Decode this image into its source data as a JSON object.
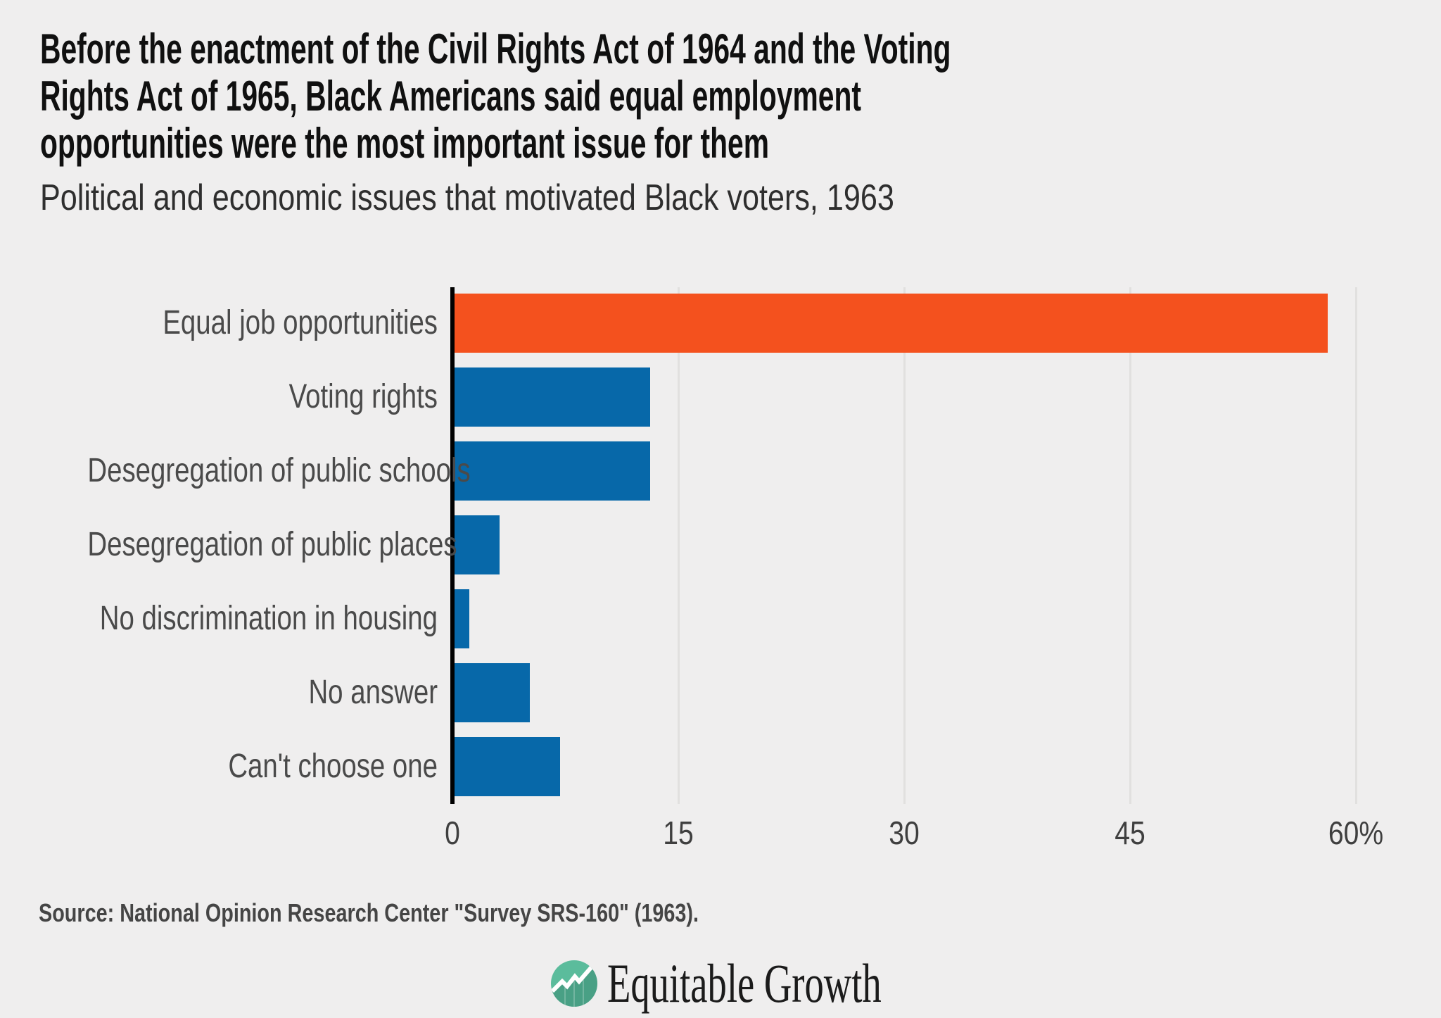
{
  "page": {
    "background": "#efeeee"
  },
  "header": {
    "title": "Before the enactment of the Civil Rights Act of 1964 and the Voting\nRights Act of 1965, Black Americans said equal employment\nopportunities were the most important issue for them",
    "subtitle": "Political and economic issues that motivated Black voters, 1963"
  },
  "chart_data": {
    "type": "bar",
    "orientation": "horizontal",
    "title": "Political and economic issues that motivated Black voters, 1963",
    "categories": [
      "Equal job opportunities",
      "Voting rights",
      "Desegregation of public schools",
      "Desegregation of public places",
      "No discrimination in housing",
      "No answer",
      "Can't choose one"
    ],
    "values": [
      58,
      13,
      13,
      3,
      1,
      5,
      7
    ],
    "unit": "%",
    "xlim": [
      0,
      65
    ],
    "x_ticks": [
      {
        "value": 0,
        "label": "0"
      },
      {
        "value": 15,
        "label": "15"
      },
      {
        "value": 30,
        "label": "30"
      },
      {
        "value": 45,
        "label": "45"
      },
      {
        "value": 60,
        "label": "60%"
      }
    ],
    "grid": "vertical",
    "highlight_index": 0,
    "colors": {
      "highlight": "#f4511e",
      "bar": "#0768a9",
      "axis": "#000000",
      "gridline": "#e1e0df"
    }
  },
  "footer": {
    "source": "Source: National Opinion Research Center \"Survey SRS-160\" (1963).",
    "logo_text": "Equitable Growth",
    "logo_circle_color": "#5bbc9c",
    "logo_line_color": "#ffffff"
  }
}
